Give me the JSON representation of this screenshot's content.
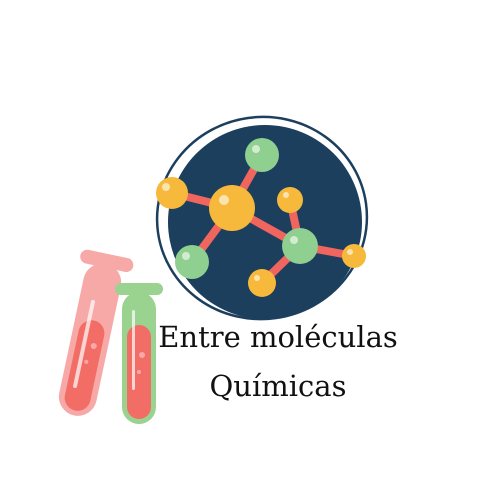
{
  "logo": {
    "title_line1": "Entre moléculas",
    "title_line2": "Químicas"
  },
  "colors": {
    "circle_fill": "#1c3f5e",
    "circle_ring": "#1c3f5e",
    "atom_yellow": "#f6b93b",
    "atom_green": "#8fcf8f",
    "bond_red": "#f0665e",
    "tube_pink": "#f7a9a8",
    "tube_green": "#9ad28f",
    "liquid_red": "#f26d66"
  },
  "icons": [
    "molecule-icon",
    "test-tube-pink-icon",
    "test-tube-green-icon"
  ]
}
